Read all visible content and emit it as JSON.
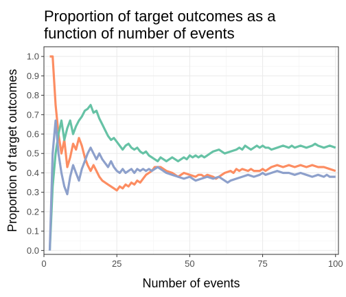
{
  "chart_data": {
    "type": "line",
    "title": "Proportion of target outcomes as a function of number of events",
    "title_lines": [
      "Proportion of target outcomes as a",
      "function of number of events"
    ],
    "xlabel": "Number of events",
    "ylabel": "Proportion of target outcomes",
    "xlim": [
      0,
      101
    ],
    "ylim": [
      -0.02,
      1.05
    ],
    "xticks": [
      0,
      25,
      50,
      75,
      100
    ],
    "yticks": [
      0.0,
      0.1,
      0.2,
      0.3,
      0.4,
      0.5,
      0.6,
      0.7,
      0.8,
      0.9,
      1.0
    ],
    "ytick_labels": [
      "0.0",
      "0.1",
      "0.2",
      "0.3",
      "0.4",
      "0.5",
      "0.6",
      "0.7",
      "0.8",
      "0.9",
      "1.0"
    ],
    "grid": true,
    "legend": false,
    "series": [
      {
        "color": "#fc8d62",
        "points": [
          [
            2,
            1.0
          ],
          [
            3,
            1.0
          ],
          [
            4,
            0.75
          ],
          [
            5,
            0.6
          ],
          [
            6,
            0.5
          ],
          [
            7,
            0.57
          ],
          [
            8,
            0.43
          ],
          [
            9,
            0.48
          ],
          [
            10,
            0.55
          ],
          [
            11,
            0.52
          ],
          [
            12,
            0.58
          ],
          [
            13,
            0.54
          ],
          [
            14,
            0.48
          ],
          [
            15,
            0.44
          ],
          [
            16,
            0.41
          ],
          [
            17,
            0.44
          ],
          [
            18,
            0.41
          ],
          [
            19,
            0.38
          ],
          [
            20,
            0.36
          ],
          [
            22,
            0.34
          ],
          [
            24,
            0.32
          ],
          [
            25,
            0.31
          ],
          [
            26,
            0.33
          ],
          [
            27,
            0.32
          ],
          [
            28,
            0.34
          ],
          [
            29,
            0.33
          ],
          [
            30,
            0.35
          ],
          [
            31,
            0.34
          ],
          [
            32,
            0.36
          ],
          [
            33,
            0.35
          ],
          [
            34,
            0.37
          ],
          [
            35,
            0.39
          ],
          [
            37,
            0.41
          ],
          [
            38,
            0.43
          ],
          [
            40,
            0.43
          ],
          [
            42,
            0.41
          ],
          [
            44,
            0.4
          ],
          [
            46,
            0.38
          ],
          [
            47,
            0.39
          ],
          [
            48,
            0.4
          ],
          [
            50,
            0.39
          ],
          [
            52,
            0.38
          ],
          [
            53,
            0.39
          ],
          [
            54,
            0.39
          ],
          [
            55,
            0.38
          ],
          [
            56,
            0.39
          ],
          [
            58,
            0.38
          ],
          [
            59,
            0.37
          ],
          [
            60,
            0.38
          ],
          [
            62,
            0.4
          ],
          [
            64,
            0.41
          ],
          [
            65,
            0.4
          ],
          [
            66,
            0.42
          ],
          [
            67,
            0.41
          ],
          [
            68,
            0.42
          ],
          [
            70,
            0.41
          ],
          [
            71,
            0.42
          ],
          [
            72,
            0.41
          ],
          [
            74,
            0.41
          ],
          [
            75,
            0.42
          ],
          [
            76,
            0.41
          ],
          [
            78,
            0.43
          ],
          [
            80,
            0.44
          ],
          [
            82,
            0.43
          ],
          [
            84,
            0.44
          ],
          [
            86,
            0.43
          ],
          [
            88,
            0.44
          ],
          [
            90,
            0.43
          ],
          [
            92,
            0.44
          ],
          [
            94,
            0.43
          ],
          [
            96,
            0.43
          ],
          [
            98,
            0.42
          ],
          [
            100,
            0.41
          ]
        ]
      },
      {
        "color": "#66c2a5",
        "points": [
          [
            2,
            0.0
          ],
          [
            3,
            0.33
          ],
          [
            4,
            0.5
          ],
          [
            5,
            0.6
          ],
          [
            6,
            0.67
          ],
          [
            7,
            0.57
          ],
          [
            8,
            0.63
          ],
          [
            9,
            0.67
          ],
          [
            10,
            0.6
          ],
          [
            11,
            0.64
          ],
          [
            12,
            0.67
          ],
          [
            13,
            0.69
          ],
          [
            14,
            0.72
          ],
          [
            15,
            0.73
          ],
          [
            16,
            0.75
          ],
          [
            17,
            0.71
          ],
          [
            18,
            0.72
          ],
          [
            19,
            0.68
          ],
          [
            20,
            0.65
          ],
          [
            21,
            0.62
          ],
          [
            22,
            0.59
          ],
          [
            23,
            0.57
          ],
          [
            24,
            0.58
          ],
          [
            25,
            0.56
          ],
          [
            26,
            0.54
          ],
          [
            27,
            0.52
          ],
          [
            28,
            0.54
          ],
          [
            29,
            0.55
          ],
          [
            30,
            0.53
          ],
          [
            31,
            0.52
          ],
          [
            32,
            0.53
          ],
          [
            33,
            0.51
          ],
          [
            34,
            0.5
          ],
          [
            35,
            0.51
          ],
          [
            36,
            0.49
          ],
          [
            37,
            0.48
          ],
          [
            38,
            0.47
          ],
          [
            39,
            0.46
          ],
          [
            40,
            0.48
          ],
          [
            41,
            0.47
          ],
          [
            42,
            0.46
          ],
          [
            43,
            0.47
          ],
          [
            44,
            0.48
          ],
          [
            45,
            0.47
          ],
          [
            46,
            0.46
          ],
          [
            47,
            0.47
          ],
          [
            48,
            0.48
          ],
          [
            49,
            0.47
          ],
          [
            50,
            0.49
          ],
          [
            51,
            0.48
          ],
          [
            52,
            0.49
          ],
          [
            53,
            0.48
          ],
          [
            54,
            0.49
          ],
          [
            55,
            0.48
          ],
          [
            56,
            0.49
          ],
          [
            57,
            0.5
          ],
          [
            58,
            0.51
          ],
          [
            60,
            0.52
          ],
          [
            61,
            0.51
          ],
          [
            62,
            0.5
          ],
          [
            64,
            0.51
          ],
          [
            66,
            0.52
          ],
          [
            67,
            0.53
          ],
          [
            68,
            0.52
          ],
          [
            69,
            0.54
          ],
          [
            70,
            0.53
          ],
          [
            71,
            0.52
          ],
          [
            72,
            0.53
          ],
          [
            73,
            0.54
          ],
          [
            74,
            0.53
          ],
          [
            75,
            0.54
          ],
          [
            76,
            0.53
          ],
          [
            77,
            0.53
          ],
          [
            78,
            0.52
          ],
          [
            80,
            0.53
          ],
          [
            82,
            0.54
          ],
          [
            84,
            0.53
          ],
          [
            85,
            0.54
          ],
          [
            86,
            0.53
          ],
          [
            88,
            0.54
          ],
          [
            90,
            0.53
          ],
          [
            92,
            0.54
          ],
          [
            93,
            0.55
          ],
          [
            94,
            0.54
          ],
          [
            96,
            0.53
          ],
          [
            98,
            0.54
          ],
          [
            100,
            0.53
          ]
        ]
      },
      {
        "color": "#8da0cb",
        "points": [
          [
            2,
            0.0
          ],
          [
            3,
            0.5
          ],
          [
            4,
            0.67
          ],
          [
            5,
            0.5
          ],
          [
            6,
            0.4
          ],
          [
            7,
            0.33
          ],
          [
            8,
            0.29
          ],
          [
            9,
            0.38
          ],
          [
            10,
            0.44
          ],
          [
            11,
            0.4
          ],
          [
            12,
            0.36
          ],
          [
            13,
            0.42
          ],
          [
            14,
            0.46
          ],
          [
            15,
            0.5
          ],
          [
            16,
            0.53
          ],
          [
            17,
            0.5
          ],
          [
            18,
            0.47
          ],
          [
            19,
            0.5
          ],
          [
            20,
            0.47
          ],
          [
            21,
            0.45
          ],
          [
            22,
            0.43
          ],
          [
            23,
            0.46
          ],
          [
            24,
            0.43
          ],
          [
            25,
            0.41
          ],
          [
            26,
            0.4
          ],
          [
            27,
            0.42
          ],
          [
            28,
            0.4
          ],
          [
            29,
            0.41
          ],
          [
            30,
            0.42
          ],
          [
            31,
            0.4
          ],
          [
            32,
            0.42
          ],
          [
            33,
            0.41
          ],
          [
            34,
            0.42
          ],
          [
            35,
            0.41
          ],
          [
            36,
            0.42
          ],
          [
            37,
            0.41
          ],
          [
            38,
            0.42
          ],
          [
            39,
            0.43
          ],
          [
            40,
            0.42
          ],
          [
            42,
            0.4
          ],
          [
            44,
            0.39
          ],
          [
            46,
            0.38
          ],
          [
            48,
            0.37
          ],
          [
            50,
            0.38
          ],
          [
            51,
            0.37
          ],
          [
            52,
            0.36
          ],
          [
            54,
            0.37
          ],
          [
            56,
            0.38
          ],
          [
            58,
            0.37
          ],
          [
            60,
            0.38
          ],
          [
            61,
            0.37
          ],
          [
            62,
            0.36
          ],
          [
            63,
            0.35
          ],
          [
            64,
            0.36
          ],
          [
            66,
            0.37
          ],
          [
            68,
            0.38
          ],
          [
            70,
            0.39
          ],
          [
            72,
            0.38
          ],
          [
            74,
            0.39
          ],
          [
            75,
            0.4
          ],
          [
            76,
            0.39
          ],
          [
            78,
            0.4
          ],
          [
            80,
            0.41
          ],
          [
            82,
            0.4
          ],
          [
            84,
            0.4
          ],
          [
            86,
            0.39
          ],
          [
            88,
            0.4
          ],
          [
            90,
            0.39
          ],
          [
            92,
            0.38
          ],
          [
            94,
            0.39
          ],
          [
            96,
            0.38
          ],
          [
            97,
            0.39
          ],
          [
            98,
            0.38
          ],
          [
            100,
            0.38
          ]
        ]
      }
    ]
  }
}
